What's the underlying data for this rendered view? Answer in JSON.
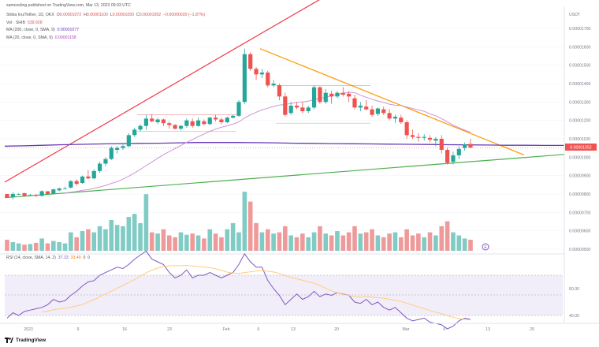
{
  "published": "samcooling published on TradingView.com, Mar 13, 2023 09:33 UTC",
  "legend": {
    "symbol": "Shiba Inu/Tether, 1D, OKX",
    "ohlc_prefix": "O",
    "open": "0.00001072",
    "high_prefix": "H",
    "high": "0.00001100",
    "low_prefix": "L",
    "low": "0.00001050",
    "close_prefix": "C",
    "close": "0.00001052",
    "change": "−0.00000020 (−1.87%)",
    "vol_label": "Vol · SHIB",
    "vol_value": "539.928",
    "ma200_label": "MA (200, close, 0, SMA, 9)",
    "ma200_value": "0.00001077",
    "ma20_label": "MA (20, close, 0, SMA, 9)",
    "ma20_value": "0.00001158",
    "rsi_label": "RSI (14, close, SMA, 14, 2)",
    "rsi_value": "37.33",
    "rsi_ma": "33.49",
    "rsi_extra1": "0",
    "rsi_extra2": "0"
  },
  "currency": "USDT",
  "price_axis": [
    "0.00001700",
    "0.00001600",
    "0.00001500",
    "0.00001400",
    "0.00001300",
    "0.00001200",
    "0.00001100",
    "0.00001000",
    "0.00000900",
    "0.00000800",
    "0.00000700",
    "0.00000600",
    "0.00000500"
  ],
  "current_price_tag": "0.00001052",
  "rsi_axis": [
    "60.00",
    "40.00"
  ],
  "time_axis": [
    "2023",
    "9",
    "16",
    "23",
    "Feb",
    "6",
    "13",
    "20",
    "Mar",
    "6",
    "13",
    "20"
  ],
  "footer": "TradingView",
  "colors": {
    "up": "#26a69a",
    "down": "#ef5350",
    "ma200": "#673ab7",
    "ma20": "#ce93d8",
    "upper_trend": "#f23645",
    "lower_trend": "#4caf50",
    "resistance": "#ff9800",
    "rsi_line": "#7e57c2",
    "rsi_ma": "#ffcc80"
  },
  "chart_data": {
    "type": "candlestick",
    "title": "Shiba Inu/Tether, 1D, OKX",
    "y_unit": "USDT",
    "ylim": [
      5e-06,
      1.75e-05
    ],
    "candles_scaled_1e-8": [
      [
        800,
        800,
        780,
        780
      ],
      [
        785,
        810,
        770,
        800
      ],
      [
        800,
        805,
        795,
        800
      ],
      [
        805,
        805,
        785,
        790
      ],
      [
        795,
        800,
        790,
        795
      ],
      [
        795,
        800,
        785,
        790
      ],
      [
        790,
        820,
        785,
        815
      ],
      [
        815,
        815,
        795,
        800
      ],
      [
        800,
        830,
        800,
        825
      ],
      [
        820,
        835,
        815,
        830
      ],
      [
        830,
        840,
        825,
        830
      ],
      [
        835,
        875,
        830,
        870
      ],
      [
        870,
        880,
        845,
        855
      ],
      [
        860,
        900,
        855,
        895
      ],
      [
        895,
        930,
        880,
        885
      ],
      [
        885,
        935,
        880,
        925
      ],
      [
        925,
        975,
        915,
        965
      ],
      [
        965,
        1000,
        950,
        990
      ],
      [
        990,
        1060,
        985,
        1050
      ],
      [
        1040,
        1060,
        1020,
        1050
      ],
      [
        1050,
        1070,
        1040,
        1060
      ],
      [
        1060,
        1130,
        1055,
        1120
      ],
      [
        1120,
        1160,
        1110,
        1150
      ],
      [
        1150,
        1180,
        1140,
        1170
      ],
      [
        1170,
        1230,
        1150,
        1210
      ],
      [
        1210,
        1235,
        1190,
        1195
      ],
      [
        1190,
        1215,
        1180,
        1205
      ],
      [
        1205,
        1210,
        1170,
        1185
      ],
      [
        1185,
        1195,
        1155,
        1175
      ],
      [
        1175,
        1180,
        1150,
        1155
      ],
      [
        1155,
        1175,
        1145,
        1170
      ],
      [
        1170,
        1210,
        1160,
        1200
      ],
      [
        1195,
        1210,
        1160,
        1170
      ],
      [
        1170,
        1215,
        1165,
        1200
      ],
      [
        1195,
        1205,
        1175,
        1180
      ],
      [
        1180,
        1220,
        1175,
        1215
      ],
      [
        1215,
        1230,
        1195,
        1205
      ],
      [
        1205,
        1215,
        1180,
        1190
      ],
      [
        1190,
        1220,
        1185,
        1215
      ],
      [
        1215,
        1230,
        1210,
        1225
      ],
      [
        1225,
        1310,
        1220,
        1300
      ],
      [
        1300,
        1590,
        1290,
        1560
      ],
      [
        1560,
        1570,
        1470,
        1480
      ],
      [
        1480,
        1490,
        1420,
        1450
      ],
      [
        1450,
        1480,
        1430,
        1460
      ],
      [
        1460,
        1470,
        1380,
        1390
      ],
      [
        1390,
        1420,
        1380,
        1400
      ],
      [
        1390,
        1400,
        1310,
        1330
      ],
      [
        1330,
        1350,
        1220,
        1230
      ],
      [
        1240,
        1300,
        1230,
        1280
      ],
      [
        1280,
        1300,
        1260,
        1270
      ],
      [
        1270,
        1300,
        1240,
        1250
      ],
      [
        1250,
        1280,
        1240,
        1270
      ],
      [
        1270,
        1390,
        1260,
        1380
      ],
      [
        1380,
        1385,
        1290,
        1300
      ],
      [
        1300,
        1370,
        1290,
        1350
      ],
      [
        1345,
        1360,
        1290,
        1330
      ],
      [
        1330,
        1360,
        1320,
        1350
      ],
      [
        1350,
        1380,
        1330,
        1340
      ],
      [
        1345,
        1360,
        1300,
        1330
      ],
      [
        1320,
        1340,
        1260,
        1270
      ],
      [
        1270,
        1300,
        1250,
        1280
      ],
      [
        1275,
        1310,
        1255,
        1260
      ],
      [
        1260,
        1280,
        1220,
        1230
      ],
      [
        1235,
        1270,
        1225,
        1265
      ],
      [
        1260,
        1275,
        1230,
        1240
      ],
      [
        1240,
        1260,
        1200,
        1210
      ],
      [
        1210,
        1230,
        1185,
        1220
      ],
      [
        1215,
        1230,
        1180,
        1190
      ],
      [
        1190,
        1200,
        1100,
        1120
      ],
      [
        1120,
        1150,
        1100,
        1110
      ],
      [
        1110,
        1130,
        1085,
        1105
      ],
      [
        1105,
        1125,
        1090,
        1110
      ],
      [
        1105,
        1120,
        1080,
        1095
      ],
      [
        1090,
        1110,
        1060,
        1100
      ],
      [
        1100,
        1120,
        1020,
        1040
      ],
      [
        1040,
        1050,
        960,
        970
      ],
      [
        975,
        1030,
        960,
        1010
      ],
      [
        1010,
        1060,
        990,
        1045
      ],
      [
        1050,
        1080,
        1035,
        1070
      ],
      [
        1072,
        1100,
        1050,
        1052
      ]
    ],
    "volume_relative": [
      0.18,
      0.14,
      0.12,
      0.1,
      0.11,
      0.13,
      0.2,
      0.12,
      0.16,
      0.14,
      0.12,
      0.3,
      0.22,
      0.32,
      0.35,
      0.3,
      0.4,
      0.35,
      0.5,
      0.42,
      0.4,
      0.55,
      0.6,
      0.45,
      0.92,
      0.3,
      0.28,
      0.35,
      0.25,
      0.22,
      0.3,
      0.26,
      0.28,
      0.25,
      0.2,
      0.35,
      0.28,
      0.22,
      0.35,
      0.45,
      0.3,
      0.96,
      0.8,
      0.45,
      0.3,
      0.35,
      0.28,
      0.3,
      0.4,
      0.25,
      0.22,
      0.28,
      0.22,
      0.3,
      0.4,
      0.28,
      0.25,
      0.32,
      0.25,
      0.3,
      0.4,
      0.28,
      0.3,
      0.35,
      0.25,
      0.22,
      0.28,
      0.3,
      0.22,
      0.35,
      0.25,
      0.28,
      0.22,
      0.3,
      0.25,
      0.4,
      0.48,
      0.3,
      0.25,
      0.2,
      0.18
    ],
    "rsi_values": [
      38,
      42,
      40,
      43,
      44,
      45,
      46,
      48,
      52,
      50,
      51,
      55,
      58,
      62,
      65,
      66,
      70,
      72,
      74,
      76,
      75,
      78,
      82,
      85,
      88,
      82,
      80,
      78,
      72,
      68,
      70,
      74,
      68,
      70,
      70,
      72,
      70,
      68,
      70,
      72,
      78,
      86,
      80,
      76,
      76,
      66,
      60,
      55,
      48,
      52,
      56,
      52,
      54,
      58,
      54,
      56,
      55,
      57,
      56,
      55,
      50,
      49,
      52,
      48,
      50,
      46,
      44,
      46,
      42,
      38,
      36,
      37,
      38,
      35,
      34,
      33,
      30,
      32,
      36,
      38,
      37
    ],
    "rsi_ylim": [
      25,
      95
    ]
  }
}
